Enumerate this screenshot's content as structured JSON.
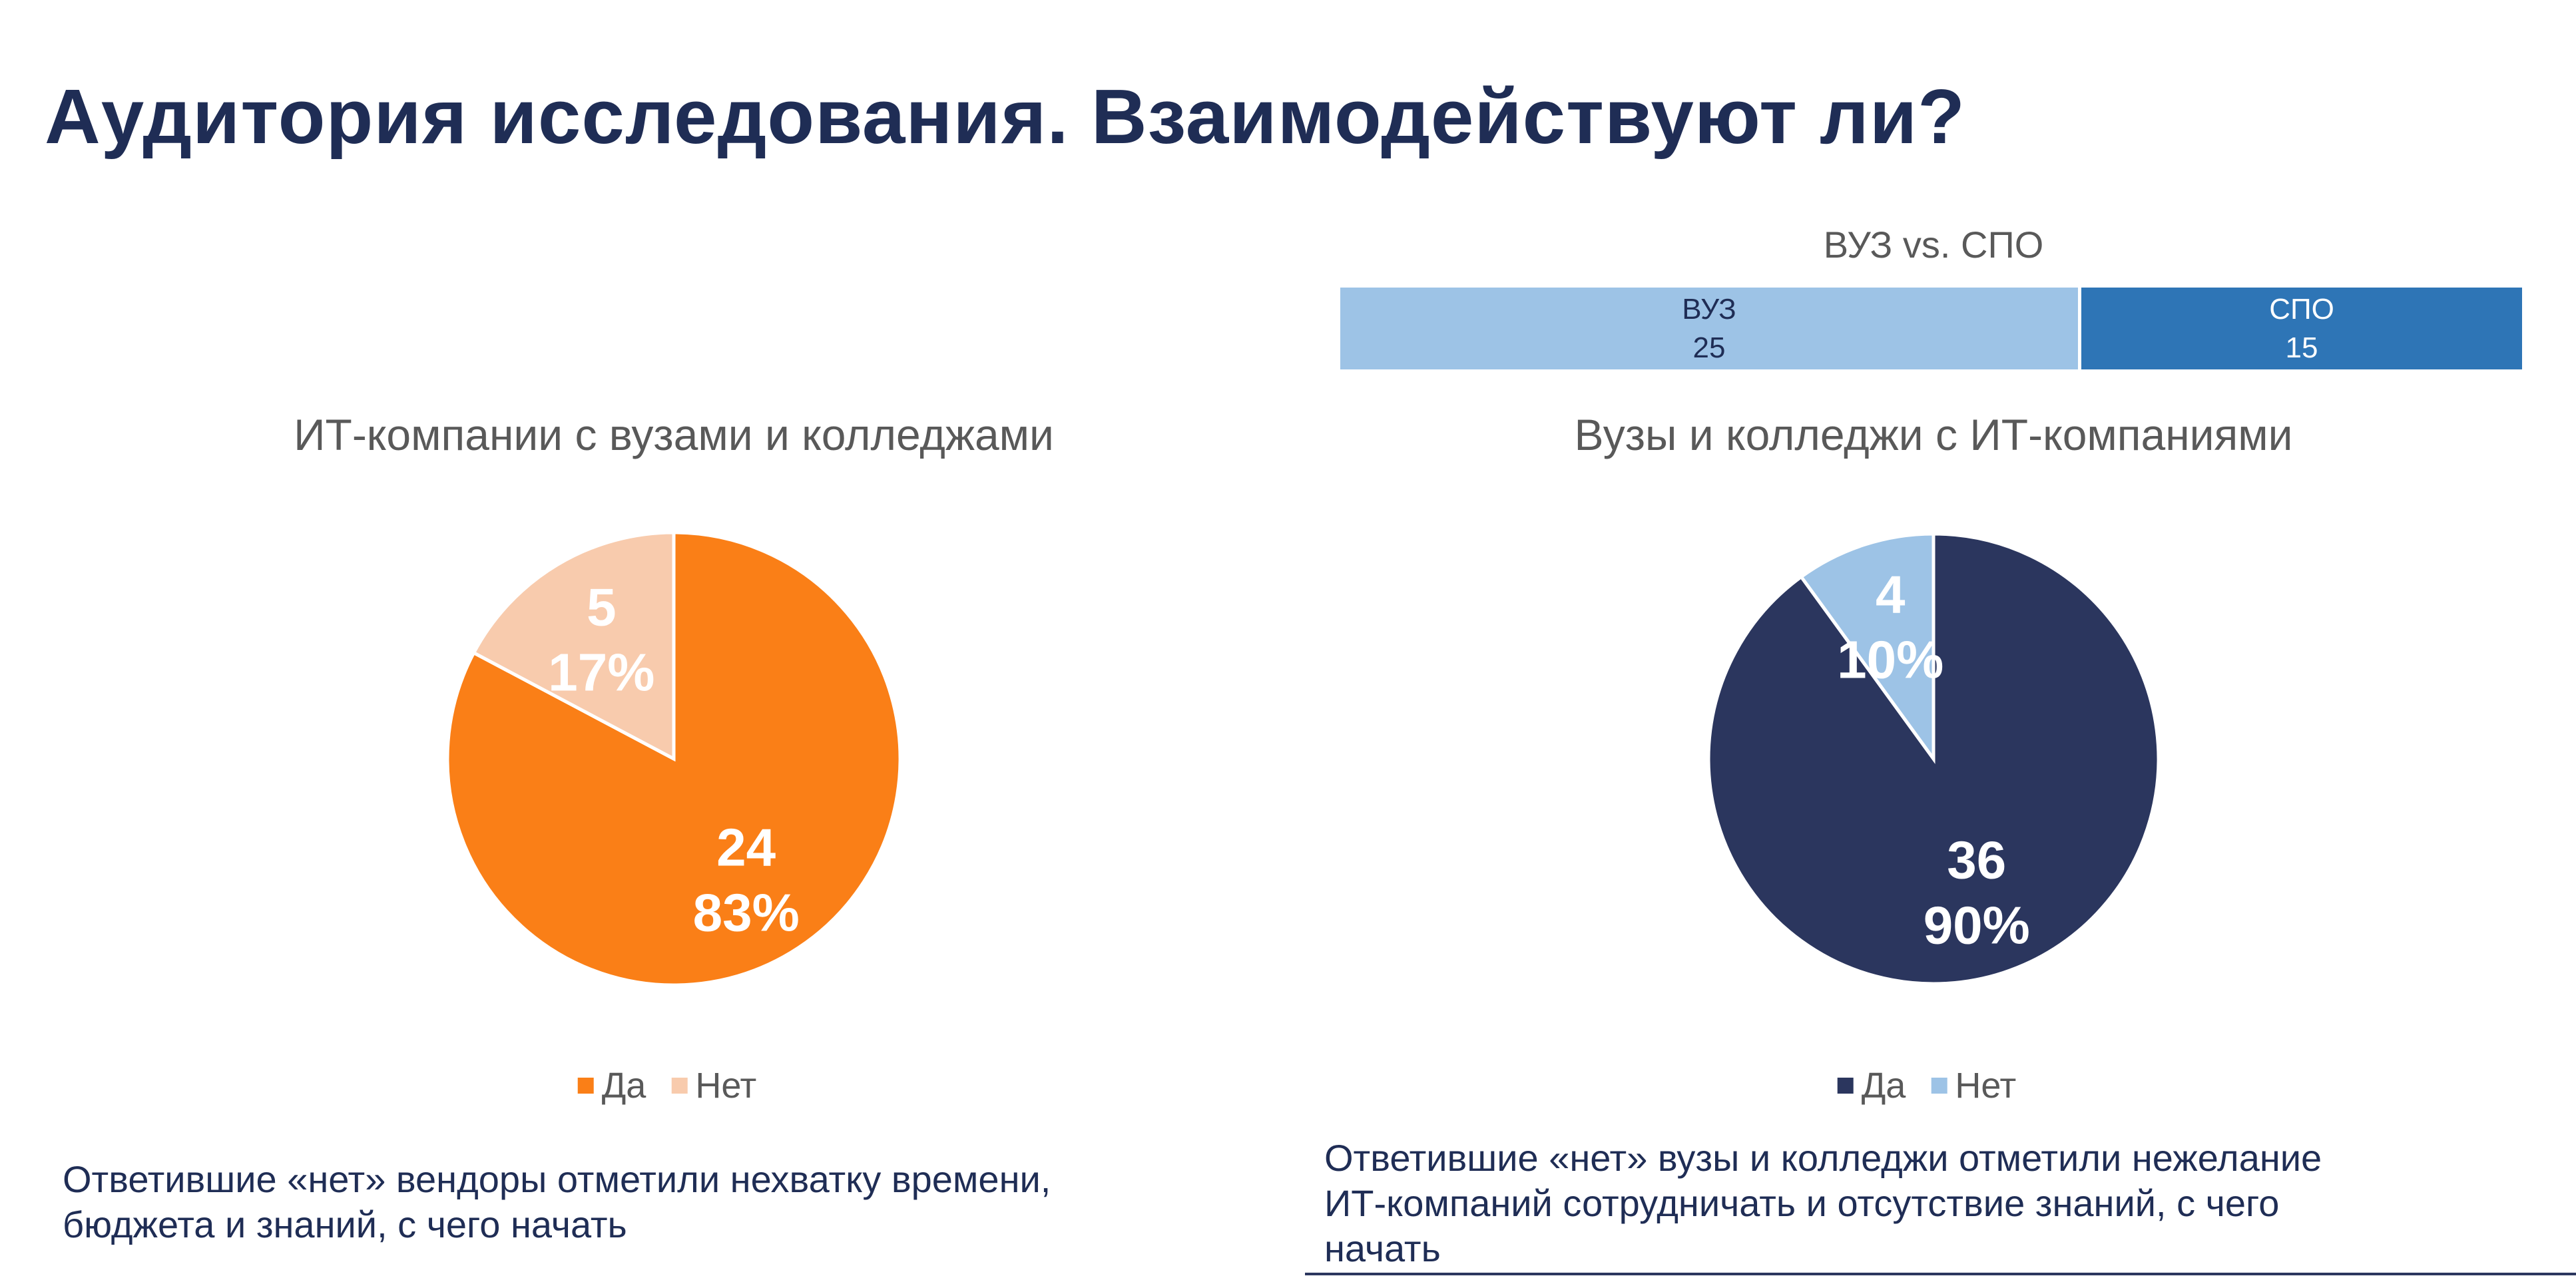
{
  "title": "Аудитория исследования. Взаимодействуют ли?",
  "chart_data": [
    {
      "type": "bar",
      "orientation": "horizontal-stacked",
      "title": "ВУЗ vs. СПО",
      "categories": [
        "ВУЗ",
        "СПО"
      ],
      "values": [
        25,
        15
      ],
      "colors": [
        "#9DC3E6",
        "#2E75B6"
      ],
      "label_colors": [
        "#1F2D55",
        "#FFFFFF"
      ]
    },
    {
      "type": "pie",
      "title": "ИТ-компании с вузами и колледжами",
      "categories": [
        "Да",
        "Нет"
      ],
      "values": [
        24,
        5
      ],
      "percent_labels": [
        "83%",
        "17%"
      ],
      "colors": [
        "#FA7F17",
        "#F8CBAD"
      ],
      "legend": "bottom"
    },
    {
      "type": "pie",
      "title": "Вузы и колледжи с ИТ-компаниями",
      "categories": [
        "Да",
        "Нет"
      ],
      "values": [
        36,
        4
      ],
      "percent_labels": [
        "90%",
        "10%"
      ],
      "colors": [
        "#2B365E",
        "#9DC3E6"
      ],
      "legend": "bottom"
    }
  ],
  "notes": {
    "left": [
      "Ответившие «нет» вендоры отметили нехватку времени,",
      "бюджета и знаний, с чего начать"
    ],
    "right": [
      "Ответившие «нет» вузы и колледжи отметили нежелание",
      "ИТ-компаний сотрудничать и отсутствие знаний, с чего",
      "начать"
    ]
  }
}
